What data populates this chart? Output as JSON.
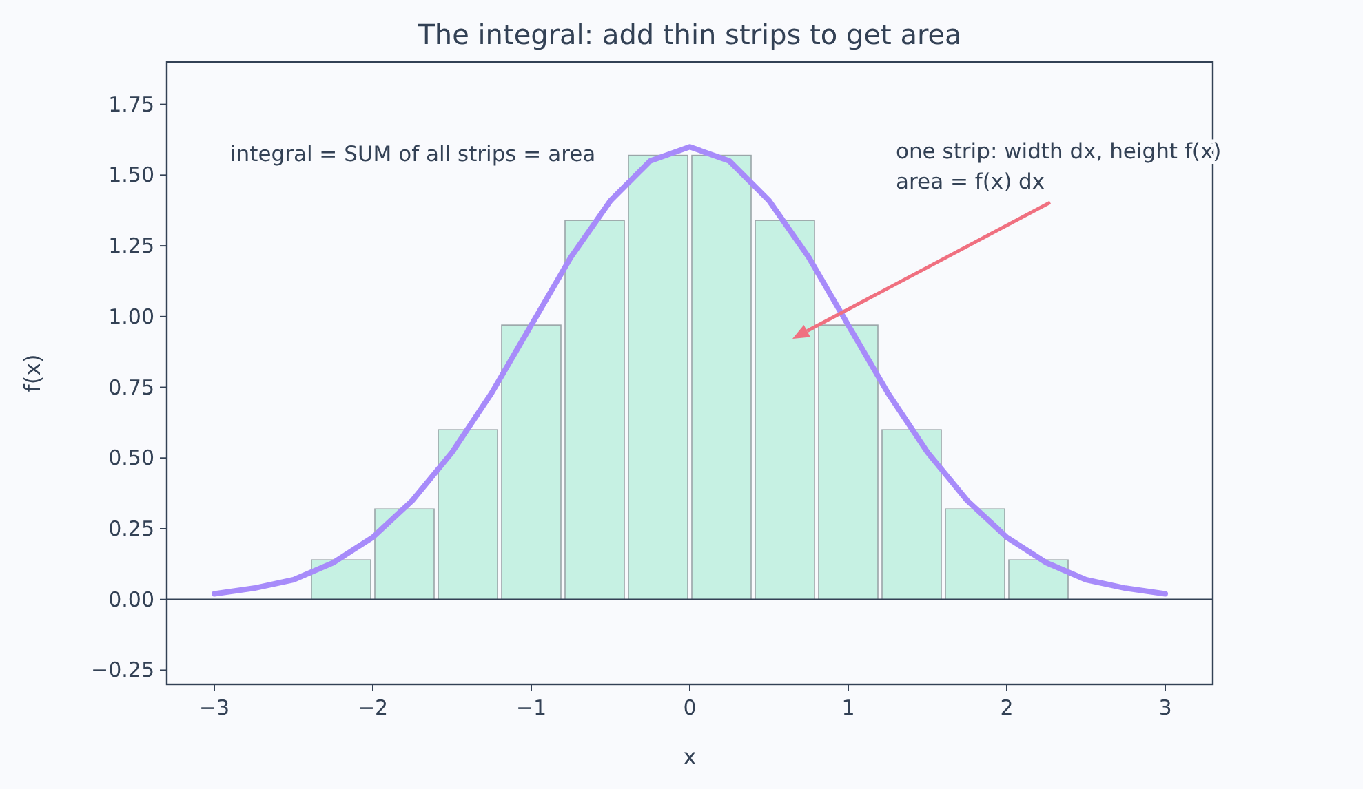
{
  "chart_data": {
    "type": "histogram",
    "title": "The integral: add thin strips to get area",
    "xlabel": "x",
    "ylabel": "f(x)",
    "bins": [
      -2.4,
      -2.0,
      -1.6,
      -1.2,
      -0.8,
      -0.4,
      0,
      0.4,
      0.8,
      1.2,
      1.6,
      2.0,
      2.4
    ],
    "values": [
      0.14,
      0.32,
      0.6,
      0.97,
      1.34,
      1.57,
      1.57,
      1.34,
      0.97,
      0.6,
      0.32,
      0.14
    ],
    "color": "#c6f1e3",
    "series": [
      {
        "type": "line",
        "color": "#a78bfa",
        "x": [
          -3,
          -2.75,
          -2.5,
          -2.25,
          -2,
          -1.75,
          -1.5,
          -1.25,
          -1,
          -0.75,
          -0.5,
          -0.25,
          0,
          0.25,
          0.5,
          0.75,
          1,
          1.25,
          1.5,
          1.75,
          2,
          2.25,
          2.5,
          2.75,
          3
        ],
        "values": [
          0.02,
          0.04,
          0.07,
          0.13,
          0.22,
          0.35,
          0.52,
          0.73,
          0.97,
          1.21,
          1.41,
          1.55,
          1.6,
          1.55,
          1.41,
          1.21,
          0.97,
          0.73,
          0.52,
          0.35,
          0.22,
          0.13,
          0.07,
          0.04,
          0.02
        ]
      }
    ],
    "ref_lines": [
      {
        "axis": "y",
        "value": 0,
        "color": "#334155"
      }
    ],
    "annotations": [
      "integral = SUM of all strips = area",
      "one strip: width dx, height f(x)\narea = f(x) dx"
    ],
    "xlim": [
      -3.3,
      3.3
    ],
    "ylim": [
      -0.3,
      1.9
    ],
    "xticks": [
      {
        "value": -3,
        "label": "−3"
      },
      {
        "value": -2,
        "label": "−2"
      },
      {
        "value": -1,
        "label": "−1"
      },
      0,
      1,
      2,
      3
    ],
    "yticks": [
      {
        "value": -0.25,
        "label": "−0.25"
      },
      {
        "value": 0,
        "label": "0.00"
      },
      {
        "value": 0.25,
        "label": "0.25"
      },
      {
        "value": 0.5,
        "label": "0.50"
      },
      {
        "value": 0.75,
        "label": "0.75"
      },
      {
        "value": 1,
        "label": "1.00"
      },
      {
        "value": 1.25,
        "label": "1.25"
      },
      {
        "value": 1.5,
        "label": "1.50"
      },
      {
        "value": 1.75,
        "label": "1.75"
      }
    ]
  }
}
